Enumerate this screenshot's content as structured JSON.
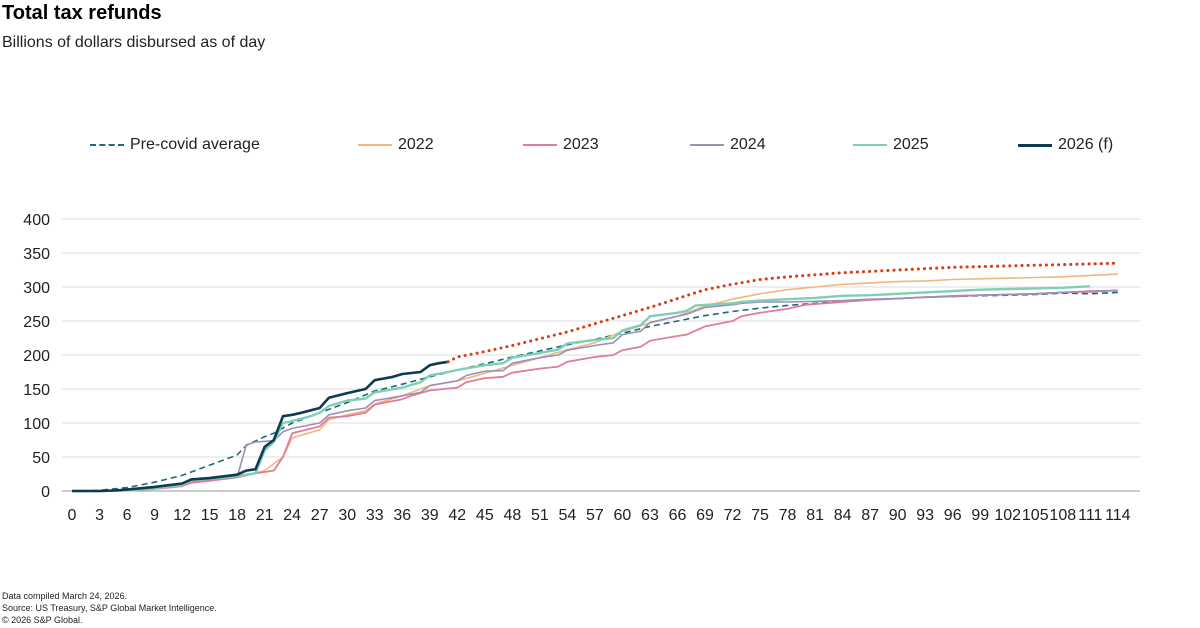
{
  "title": "Total tax refunds",
  "subtitle": "Billions of dollars disbursed as of day",
  "footnotes": {
    "compiled": "Data compiled March 24, 2026.",
    "source": "Source: US Treasury, S&P Global Market Intelligence.",
    "copyright": "© 2026 S&P Global."
  },
  "chart_data": {
    "type": "line",
    "title": "Total tax refunds",
    "subtitle": "Billions of dollars disbursed as of day",
    "xlabel": "",
    "ylabel": "",
    "xlim": [
      0,
      115
    ],
    "ylim": [
      0,
      400
    ],
    "yticks": [
      0,
      50,
      100,
      150,
      200,
      250,
      300,
      350,
      400
    ],
    "xticks": [
      0,
      3,
      6,
      9,
      12,
      15,
      18,
      21,
      24,
      27,
      30,
      33,
      36,
      39,
      42,
      45,
      48,
      51,
      54,
      57,
      60,
      63,
      66,
      69,
      72,
      75,
      78,
      81,
      84,
      87,
      90,
      93,
      96,
      99,
      102,
      105,
      108,
      111,
      114
    ],
    "grid": true,
    "legend_position": "top",
    "series": [
      {
        "name": "Pre-covid average",
        "color": "#1b6b7e",
        "style": "dashed",
        "width": 1.6,
        "points": [
          [
            0,
            0
          ],
          [
            3,
            1
          ],
          [
            6,
            5
          ],
          [
            9,
            13
          ],
          [
            12,
            23
          ],
          [
            15,
            38
          ],
          [
            18,
            53
          ],
          [
            19,
            67
          ],
          [
            21,
            80
          ],
          [
            22,
            85
          ],
          [
            24,
            100
          ],
          [
            27,
            115
          ],
          [
            30,
            130
          ],
          [
            33,
            147
          ],
          [
            36,
            157
          ],
          [
            39,
            168
          ],
          [
            42,
            178
          ],
          [
            45,
            187
          ],
          [
            48,
            197
          ],
          [
            51,
            206
          ],
          [
            54,
            215
          ],
          [
            57,
            223
          ],
          [
            60,
            232
          ],
          [
            63,
            242
          ],
          [
            66,
            250
          ],
          [
            69,
            258
          ],
          [
            72,
            264
          ],
          [
            75,
            269
          ],
          [
            78,
            273
          ],
          [
            81,
            276
          ],
          [
            84,
            279
          ],
          [
            87,
            281
          ],
          [
            90,
            283
          ],
          [
            93,
            285
          ],
          [
            96,
            286
          ],
          [
            99,
            287
          ],
          [
            102,
            288
          ],
          [
            105,
            289
          ],
          [
            108,
            291
          ],
          [
            111,
            290
          ],
          [
            114,
            292
          ]
        ]
      },
      {
        "name": "2022",
        "color": "#f0b87c",
        "style": "solid",
        "width": 1.6,
        "points": [
          [
            0,
            0
          ],
          [
            3,
            0
          ],
          [
            6,
            1
          ],
          [
            9,
            4
          ],
          [
            12,
            9
          ],
          [
            13,
            14
          ],
          [
            15,
            16
          ],
          [
            18,
            20
          ],
          [
            21,
            30
          ],
          [
            22,
            40
          ],
          [
            23,
            50
          ],
          [
            24,
            78
          ],
          [
            25,
            82
          ],
          [
            27,
            90
          ],
          [
            28,
            105
          ],
          [
            30,
            112
          ],
          [
            32,
            118
          ],
          [
            33,
            128
          ],
          [
            36,
            140
          ],
          [
            39,
            155
          ],
          [
            42,
            162
          ],
          [
            45,
            173
          ],
          [
            48,
            185
          ],
          [
            51,
            196
          ],
          [
            54,
            208
          ],
          [
            57,
            218
          ],
          [
            60,
            235
          ],
          [
            63,
            247
          ],
          [
            66,
            257
          ],
          [
            69,
            272
          ],
          [
            72,
            282
          ],
          [
            75,
            290
          ],
          [
            78,
            296
          ],
          [
            81,
            300
          ],
          [
            84,
            304
          ],
          [
            87,
            306
          ],
          [
            90,
            308
          ],
          [
            93,
            309
          ],
          [
            96,
            311
          ],
          [
            99,
            312
          ],
          [
            102,
            313
          ],
          [
            105,
            314
          ],
          [
            108,
            315
          ],
          [
            111,
            317
          ],
          [
            114,
            319
          ]
        ]
      },
      {
        "name": "2023",
        "color": "#e07c9c",
        "style": "solid",
        "width": 1.8,
        "points": [
          [
            0,
            0
          ],
          [
            3,
            0
          ],
          [
            6,
            1
          ],
          [
            9,
            3
          ],
          [
            12,
            7
          ],
          [
            13,
            12
          ],
          [
            15,
            15
          ],
          [
            18,
            20
          ],
          [
            20,
            26
          ],
          [
            22,
            30
          ],
          [
            23,
            50
          ],
          [
            24,
            85
          ],
          [
            27,
            95
          ],
          [
            28,
            108
          ],
          [
            30,
            110
          ],
          [
            32,
            115
          ],
          [
            33,
            127
          ],
          [
            36,
            135
          ],
          [
            37,
            140
          ],
          [
            39,
            148
          ],
          [
            42,
            152
          ],
          [
            43,
            160
          ],
          [
            45,
            166
          ],
          [
            47,
            168
          ],
          [
            48,
            174
          ],
          [
            51,
            180
          ],
          [
            53,
            183
          ],
          [
            54,
            190
          ],
          [
            57,
            197
          ],
          [
            59,
            200
          ],
          [
            60,
            207
          ],
          [
            62,
            212
          ],
          [
            63,
            221
          ],
          [
            66,
            228
          ],
          [
            67,
            230
          ],
          [
            69,
            242
          ],
          [
            72,
            250
          ],
          [
            73,
            257
          ],
          [
            75,
            262
          ],
          [
            78,
            268
          ],
          [
            80,
            274
          ],
          [
            84,
            278
          ],
          [
            87,
            281
          ],
          [
            90,
            283
          ],
          [
            93,
            285
          ],
          [
            96,
            286
          ],
          [
            99,
            288
          ],
          [
            102,
            289
          ],
          [
            105,
            290
          ],
          [
            108,
            292
          ],
          [
            111,
            293
          ],
          [
            114,
            295
          ]
        ]
      },
      {
        "name": "2024",
        "color": "#9c8fb8",
        "style": "solid",
        "width": 1.6,
        "points": [
          [
            0,
            0
          ],
          [
            3,
            0
          ],
          [
            6,
            1
          ],
          [
            9,
            4
          ],
          [
            12,
            9
          ],
          [
            13,
            15
          ],
          [
            15,
            17
          ],
          [
            18,
            20
          ],
          [
            19,
            68
          ],
          [
            20,
            72
          ],
          [
            22,
            74
          ],
          [
            23,
            87
          ],
          [
            24,
            92
          ],
          [
            27,
            100
          ],
          [
            28,
            112
          ],
          [
            30,
            118
          ],
          [
            32,
            122
          ],
          [
            33,
            133
          ],
          [
            36,
            140
          ],
          [
            38,
            145
          ],
          [
            39,
            155
          ],
          [
            42,
            162
          ],
          [
            43,
            170
          ],
          [
            45,
            176
          ],
          [
            47,
            177
          ],
          [
            48,
            188
          ],
          [
            51,
            196
          ],
          [
            53,
            200
          ],
          [
            54,
            207
          ],
          [
            57,
            214
          ],
          [
            59,
            218
          ],
          [
            60,
            230
          ],
          [
            62,
            235
          ],
          [
            63,
            248
          ],
          [
            66,
            257
          ],
          [
            67,
            260
          ],
          [
            69,
            270
          ],
          [
            72,
            274
          ],
          [
            73,
            276
          ],
          [
            75,
            278
          ],
          [
            78,
            278
          ],
          [
            81,
            279
          ],
          [
            84,
            280
          ],
          [
            87,
            282
          ],
          [
            90,
            283
          ],
          [
            93,
            285
          ],
          [
            96,
            287
          ],
          [
            99,
            288
          ],
          [
            102,
            289
          ],
          [
            105,
            290
          ],
          [
            108,
            292
          ],
          [
            111,
            294
          ],
          [
            114,
            295
          ]
        ]
      },
      {
        "name": "2025",
        "color": "#7ecfb4",
        "style": "solid",
        "width": 2.4,
        "points": [
          [
            0,
            0
          ],
          [
            3,
            0
          ],
          [
            6,
            1
          ],
          [
            9,
            4
          ],
          [
            12,
            9
          ],
          [
            13,
            16
          ],
          [
            15,
            18
          ],
          [
            18,
            22
          ],
          [
            20,
            26
          ],
          [
            21,
            60
          ],
          [
            22,
            72
          ],
          [
            23,
            100
          ],
          [
            24,
            103
          ],
          [
            26,
            110
          ],
          [
            27,
            115
          ],
          [
            28,
            125
          ],
          [
            30,
            133
          ],
          [
            32,
            136
          ],
          [
            33,
            145
          ],
          [
            36,
            152
          ],
          [
            38,
            160
          ],
          [
            39,
            170
          ],
          [
            41,
            175
          ],
          [
            42,
            178
          ],
          [
            45,
            185
          ],
          [
            47,
            188
          ],
          [
            48,
            196
          ],
          [
            51,
            203
          ],
          [
            53,
            208
          ],
          [
            54,
            217
          ],
          [
            57,
            222
          ],
          [
            59,
            225
          ],
          [
            60,
            236
          ],
          [
            62,
            244
          ],
          [
            63,
            257
          ],
          [
            66,
            262
          ],
          [
            67,
            265
          ],
          [
            68,
            273
          ],
          [
            72,
            276
          ],
          [
            73,
            278
          ],
          [
            75,
            280
          ],
          [
            78,
            282
          ],
          [
            81,
            284
          ],
          [
            84,
            287
          ],
          [
            87,
            288
          ],
          [
            90,
            290
          ],
          [
            93,
            292
          ],
          [
            96,
            294
          ],
          [
            99,
            296
          ],
          [
            102,
            297
          ],
          [
            105,
            298
          ],
          [
            108,
            299
          ],
          [
            111,
            301
          ]
        ]
      },
      {
        "name": "2026 (f)",
        "color": "#0e3a52",
        "style": "solid",
        "width": 2.6,
        "points": [
          [
            0,
            0
          ],
          [
            3,
            0
          ],
          [
            5,
            1
          ],
          [
            6,
            2
          ],
          [
            9,
            6
          ],
          [
            12,
            11
          ],
          [
            13,
            17
          ],
          [
            15,
            19
          ],
          [
            18,
            24
          ],
          [
            19,
            30
          ],
          [
            20,
            32
          ],
          [
            21,
            65
          ],
          [
            22,
            75
          ],
          [
            23,
            110
          ],
          [
            24,
            112
          ],
          [
            25,
            115
          ],
          [
            27,
            122
          ],
          [
            28,
            137
          ],
          [
            30,
            144
          ],
          [
            32,
            150
          ],
          [
            33,
            163
          ],
          [
            35,
            168
          ],
          [
            36,
            172
          ],
          [
            38,
            175
          ],
          [
            39,
            185
          ],
          [
            40,
            188
          ],
          [
            41,
            190
          ]
        ]
      },
      {
        "name": "Forecast",
        "color": "#d93b12",
        "style": "dotted",
        "width": 3,
        "in_legend": false,
        "points": [
          [
            41,
            190
          ],
          [
            42,
            197
          ],
          [
            45,
            205
          ],
          [
            48,
            214
          ],
          [
            51,
            224
          ],
          [
            54,
            234
          ],
          [
            57,
            246
          ],
          [
            60,
            258
          ],
          [
            63,
            270
          ],
          [
            66,
            283
          ],
          [
            69,
            296
          ],
          [
            72,
            304
          ],
          [
            75,
            311
          ],
          [
            78,
            315
          ],
          [
            81,
            318
          ],
          [
            84,
            321
          ],
          [
            87,
            323
          ],
          [
            90,
            325
          ],
          [
            93,
            327
          ],
          [
            96,
            329
          ],
          [
            99,
            330
          ],
          [
            102,
            331
          ],
          [
            105,
            332
          ],
          [
            108,
            333
          ],
          [
            111,
            334
          ],
          [
            114,
            335
          ]
        ]
      }
    ]
  }
}
